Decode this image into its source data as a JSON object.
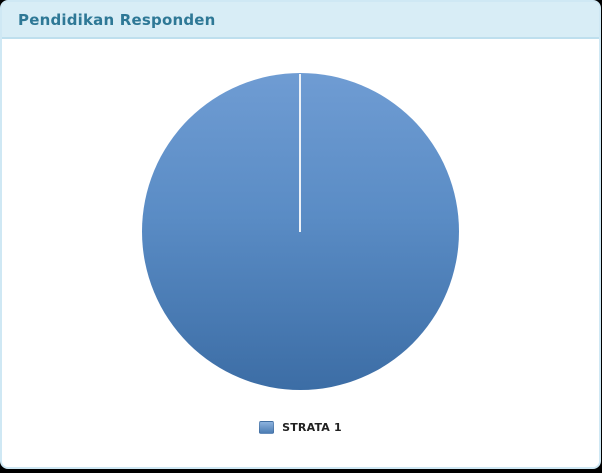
{
  "header": {
    "title": "Pendidikan Responden"
  },
  "chart_data": {
    "type": "pie",
    "title": "Pendidikan Responden",
    "categories": [
      "STRATA 1"
    ],
    "values": [
      100
    ],
    "unit": "percent",
    "legend_position": "bottom",
    "slice_colors": [
      "#5588c0"
    ],
    "slice_divider_color": "#edf2f8"
  },
  "colors": {
    "header_background": "#d8edf6",
    "header_border": "#bedfee",
    "title_text": "#2e7896",
    "card_background": "#ffffff",
    "card_border": "#cfe8f4",
    "page_background": "#000000",
    "pie_gradient_top": "#6f9cd3",
    "pie_gradient_bottom": "#3c6da5",
    "legend_text": "#222222"
  }
}
